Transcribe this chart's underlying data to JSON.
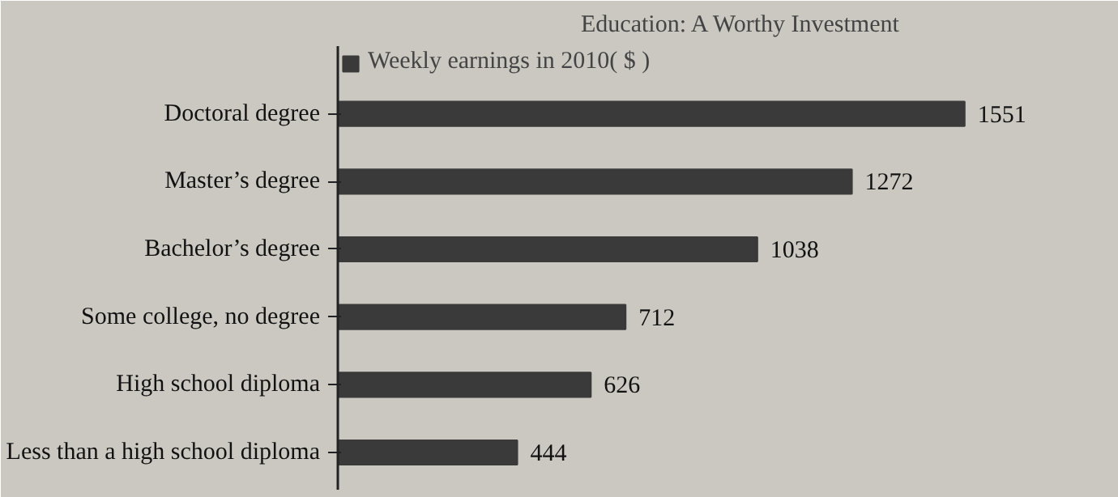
{
  "chart_data": {
    "type": "bar",
    "orientation": "horizontal",
    "title": "Education: A Worthy Investment",
    "categories": [
      "Doctoral degree",
      "Master’s degree",
      "Bachelor’s degree",
      "Some college, no degree",
      "High school diploma",
      "Less than a high school diploma"
    ],
    "series": [
      {
        "name": "Weekly earnings in 2010( $ )",
        "color": "#3a3a3a",
        "values": [
          1551,
          1272,
          1038,
          712,
          626,
          444
        ]
      }
    ],
    "data_labels": true,
    "legend": "top",
    "grid": false
  }
}
